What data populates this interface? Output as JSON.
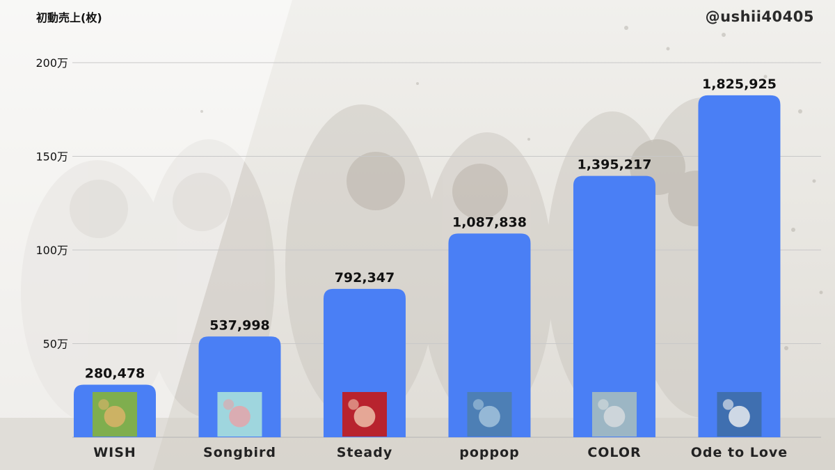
{
  "header": {
    "unit_label": "初動売上(枚)",
    "credit": "@ushii40405"
  },
  "colors": {
    "bar": "#4a7ff5",
    "gridline": "#c8c8c8",
    "background": "#ecebe7"
  },
  "chart_data": {
    "type": "bar",
    "ylabel": "初動売上(枚)",
    "ylim": [
      0,
      2000000
    ],
    "yticks": [
      {
        "value": 500000,
        "label": "50万"
      },
      {
        "value": 1000000,
        "label": "100万"
      },
      {
        "value": 1500000,
        "label": "150万"
      },
      {
        "value": 2000000,
        "label": "200万"
      }
    ],
    "grid": true,
    "categories": [
      "WISH",
      "Songbird",
      "Steady",
      "poppop",
      "COLOR",
      "Ode to Love"
    ],
    "values": [
      280478,
      537998,
      792347,
      1087838,
      1395217,
      1825925
    ],
    "value_labels": [
      "280,478",
      "537,998",
      "792,347",
      "1,087,838",
      "1,395,217",
      "1,825,925"
    ],
    "cover_icons": [
      "wish-cover-icon",
      "songbird-cover-icon",
      "steady-cover-icon",
      "poppop-cover-icon",
      "color-cover-icon",
      "ode-to-love-cover-icon"
    ],
    "cover_colors": [
      [
        "#7fae4e",
        "#e0b36a"
      ],
      [
        "#9fd6de",
        "#e8a1a6"
      ],
      [
        "#b8232e",
        "#f0c8b0"
      ],
      [
        "#4d7fb5",
        "#a8c7de"
      ],
      [
        "#9cb6c4",
        "#d9dde0"
      ],
      [
        "#3f6fb0",
        "#f2f2f2"
      ]
    ]
  }
}
